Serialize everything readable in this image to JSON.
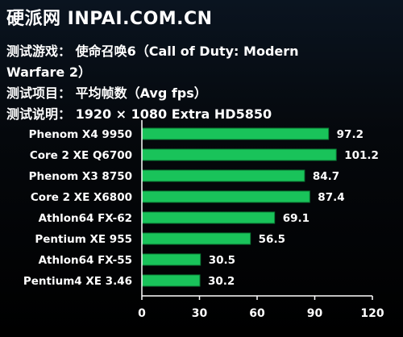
{
  "header": {
    "brand": "硬派网 INPAI.COM.CN",
    "game_line1": "测试游戏： 使命召唤6（Call of Duty: Modern",
    "game_line2": "Warfare 2）",
    "item_line": "测试项目： 平均帧数（Avg fps）",
    "desc_line": "测试说明： 1920 × 1080 Extra HD5850"
  },
  "colors": {
    "bar": "#19c35a",
    "bar_border": "#0a7a34",
    "axis": "#ffffff"
  },
  "chart_data": {
    "type": "bar",
    "orientation": "horizontal",
    "categories": [
      "Phenom X4 9950",
      "Core 2 XE Q6700",
      "Phenom X3 8750",
      "Core 2 XE X6800",
      "Athlon64 FX-62",
      "Pentium XE 955",
      "Athlon64 FX-55",
      "Pentium4 XE 3.46"
    ],
    "values": [
      97.2,
      101.2,
      84.7,
      87.4,
      69.1,
      56.5,
      30.5,
      30.2
    ],
    "value_labels": [
      "97.2",
      "101.2",
      "84.7",
      "87.4",
      "69.1",
      "56.5",
      "30.5",
      "30.2"
    ],
    "xlim": [
      0,
      120
    ],
    "xticks": [
      "0",
      "30",
      "60",
      "90",
      "120"
    ],
    "title": "",
    "xlabel": "",
    "ylabel": "",
    "grid": false
  }
}
